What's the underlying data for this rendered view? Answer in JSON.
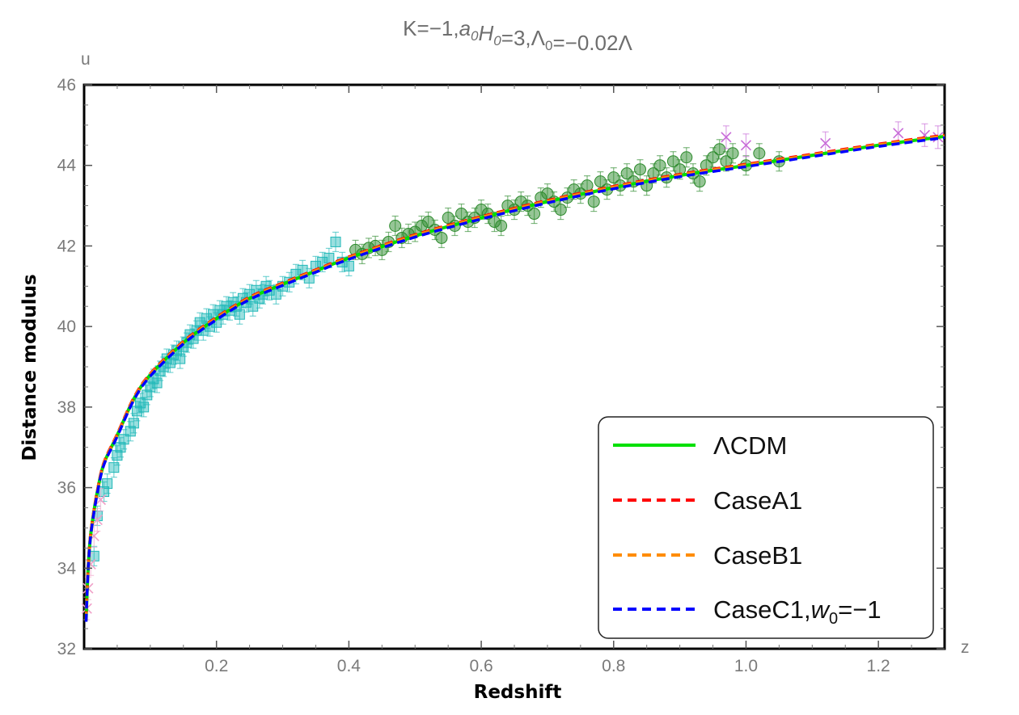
{
  "chart_data": {
    "type": "scatter",
    "title": "K=−1,a0H0=3,Λ0=−0.02Λ",
    "xlabel": "Redshift",
    "ylabel": "Distance modulus",
    "x_axis_letter": "z",
    "y_axis_letter": "u",
    "xlim": [
      0.0,
      1.3
    ],
    "ylim": [
      32,
      46
    ],
    "x_ticks": [
      0.2,
      0.4,
      0.6,
      0.8,
      1.0,
      1.2
    ],
    "x_tick_labels": [
      "0.2",
      "0.4",
      "0.6",
      "0.8",
      "1.0",
      "1.2"
    ],
    "y_ticks": [
      32,
      34,
      36,
      38,
      40,
      42,
      44,
      46
    ],
    "y_tick_labels": [
      "32",
      "34",
      "36",
      "38",
      "40",
      "42",
      "44",
      "46"
    ],
    "grid": false,
    "legend_position": "bottom-right",
    "model_curve": {
      "description": "distance modulus for flat LCDM-like model",
      "x": [
        0.003,
        0.005,
        0.008,
        0.012,
        0.02,
        0.03,
        0.05,
        0.075,
        0.1,
        0.15,
        0.2,
        0.25,
        0.3,
        0.35,
        0.4,
        0.5,
        0.6,
        0.7,
        0.8,
        0.9,
        1.0,
        1.1,
        1.2,
        1.3
      ],
      "y": [
        32.7,
        33.6,
        34.5,
        35.1,
        35.9,
        36.6,
        37.3,
        38.2,
        38.8,
        39.6,
        40.2,
        40.7,
        41.05,
        41.38,
        41.7,
        42.25,
        42.7,
        43.1,
        43.45,
        43.75,
        44.0,
        44.25,
        44.5,
        44.72
      ]
    },
    "series": [
      {
        "name": "ΛCDM",
        "style": "solid",
        "color": "#00e000"
      },
      {
        "name": "CaseA1",
        "style": "dashed",
        "color": "#ff0000"
      },
      {
        "name": "CaseB1",
        "style": "dashed",
        "color": "#ff8c00"
      },
      {
        "name": "CaseC1,w0=−1",
        "style": "dashed",
        "color": "#0000ff"
      }
    ],
    "data_groups": [
      {
        "marker": "square",
        "color": "#20b8b8",
        "points": [
          [
            0.015,
            34.3
          ],
          [
            0.02,
            35.3
          ],
          [
            0.03,
            35.9
          ],
          [
            0.035,
            36.1
          ],
          [
            0.045,
            36.5
          ],
          [
            0.05,
            36.8
          ],
          [
            0.055,
            37.0
          ],
          [
            0.06,
            37.2
          ],
          [
            0.07,
            37.4
          ],
          [
            0.075,
            37.6
          ],
          [
            0.08,
            37.9
          ],
          [
            0.085,
            38.1
          ],
          [
            0.09,
            38.0
          ],
          [
            0.095,
            38.3
          ],
          [
            0.1,
            38.5
          ],
          [
            0.105,
            38.7
          ],
          [
            0.11,
            38.6
          ],
          [
            0.115,
            38.9
          ],
          [
            0.12,
            39.0
          ],
          [
            0.125,
            39.2
          ],
          [
            0.13,
            39.1
          ],
          [
            0.135,
            39.3
          ],
          [
            0.14,
            39.4
          ],
          [
            0.145,
            39.2
          ],
          [
            0.15,
            39.5
          ],
          [
            0.155,
            39.6
          ],
          [
            0.16,
            39.8
          ],
          [
            0.165,
            39.7
          ],
          [
            0.17,
            39.9
          ],
          [
            0.175,
            40.1
          ],
          [
            0.18,
            39.9
          ],
          [
            0.185,
            40.2
          ],
          [
            0.19,
            40.0
          ],
          [
            0.195,
            40.3
          ],
          [
            0.2,
            40.1
          ],
          [
            0.205,
            40.4
          ],
          [
            0.21,
            40.3
          ],
          [
            0.215,
            40.5
          ],
          [
            0.22,
            40.4
          ],
          [
            0.225,
            40.6
          ],
          [
            0.23,
            40.5
          ],
          [
            0.235,
            40.3
          ],
          [
            0.24,
            40.7
          ],
          [
            0.245,
            40.6
          ],
          [
            0.25,
            40.8
          ],
          [
            0.255,
            40.5
          ],
          [
            0.26,
            40.9
          ],
          [
            0.265,
            40.7
          ],
          [
            0.27,
            40.8
          ],
          [
            0.275,
            41.0
          ],
          [
            0.28,
            40.9
          ],
          [
            0.29,
            40.8
          ],
          [
            0.3,
            41.0
          ],
          [
            0.31,
            41.1
          ],
          [
            0.32,
            41.3
          ],
          [
            0.33,
            41.4
          ],
          [
            0.34,
            41.2
          ],
          [
            0.35,
            41.5
          ],
          [
            0.36,
            41.6
          ],
          [
            0.37,
            41.7
          ],
          [
            0.38,
            42.1
          ],
          [
            0.39,
            41.6
          ],
          [
            0.4,
            41.5
          ]
        ]
      },
      {
        "marker": "circle",
        "color": "#2e8b2e",
        "points": [
          [
            0.41,
            41.9
          ],
          [
            0.42,
            41.8
          ],
          [
            0.43,
            41.95
          ],
          [
            0.44,
            42.0
          ],
          [
            0.45,
            41.9
          ],
          [
            0.46,
            42.1
          ],
          [
            0.47,
            42.5
          ],
          [
            0.48,
            42.2
          ],
          [
            0.49,
            42.3
          ],
          [
            0.5,
            42.35
          ],
          [
            0.51,
            42.5
          ],
          [
            0.52,
            42.6
          ],
          [
            0.53,
            42.4
          ],
          [
            0.54,
            42.2
          ],
          [
            0.55,
            42.7
          ],
          [
            0.56,
            42.5
          ],
          [
            0.57,
            42.8
          ],
          [
            0.58,
            42.6
          ],
          [
            0.59,
            42.7
          ],
          [
            0.6,
            42.9
          ],
          [
            0.61,
            42.8
          ],
          [
            0.62,
            42.6
          ],
          [
            0.63,
            42.5
          ],
          [
            0.64,
            43.0
          ],
          [
            0.65,
            42.9
          ],
          [
            0.66,
            43.1
          ],
          [
            0.67,
            43.0
          ],
          [
            0.68,
            42.8
          ],
          [
            0.69,
            43.2
          ],
          [
            0.7,
            43.3
          ],
          [
            0.71,
            43.1
          ],
          [
            0.72,
            42.9
          ],
          [
            0.73,
            43.2
          ],
          [
            0.74,
            43.4
          ],
          [
            0.75,
            43.3
          ],
          [
            0.76,
            43.5
          ],
          [
            0.77,
            43.1
          ],
          [
            0.78,
            43.6
          ],
          [
            0.79,
            43.4
          ],
          [
            0.8,
            43.7
          ],
          [
            0.81,
            43.5
          ],
          [
            0.82,
            43.8
          ],
          [
            0.83,
            43.6
          ],
          [
            0.84,
            43.9
          ],
          [
            0.85,
            43.5
          ],
          [
            0.86,
            43.8
          ],
          [
            0.87,
            44.0
          ],
          [
            0.88,
            43.7
          ],
          [
            0.89,
            44.1
          ],
          [
            0.9,
            43.9
          ],
          [
            0.91,
            44.2
          ],
          [
            0.92,
            43.8
          ],
          [
            0.93,
            43.6
          ],
          [
            0.94,
            44.0
          ],
          [
            0.95,
            44.2
          ],
          [
            0.96,
            44.4
          ],
          [
            0.97,
            44.1
          ],
          [
            0.98,
            44.3
          ],
          [
            1.0,
            44.0
          ],
          [
            1.02,
            44.3
          ],
          [
            1.05,
            44.1
          ]
        ]
      },
      {
        "marker": "cross",
        "color": "#c86bd8",
        "points": [
          [
            0.97,
            44.7
          ],
          [
            1.0,
            44.5
          ],
          [
            1.12,
            44.55
          ],
          [
            1.23,
            44.8
          ],
          [
            1.27,
            44.75
          ],
          [
            1.29,
            44.7
          ]
        ]
      },
      {
        "marker": "cross",
        "color": "#f0a0c8",
        "points": [
          [
            0.004,
            33.0
          ],
          [
            0.006,
            33.5
          ],
          [
            0.01,
            34.1
          ],
          [
            0.015,
            34.8
          ],
          [
            0.02,
            35.2
          ],
          [
            0.025,
            35.7
          ]
        ]
      }
    ]
  }
}
